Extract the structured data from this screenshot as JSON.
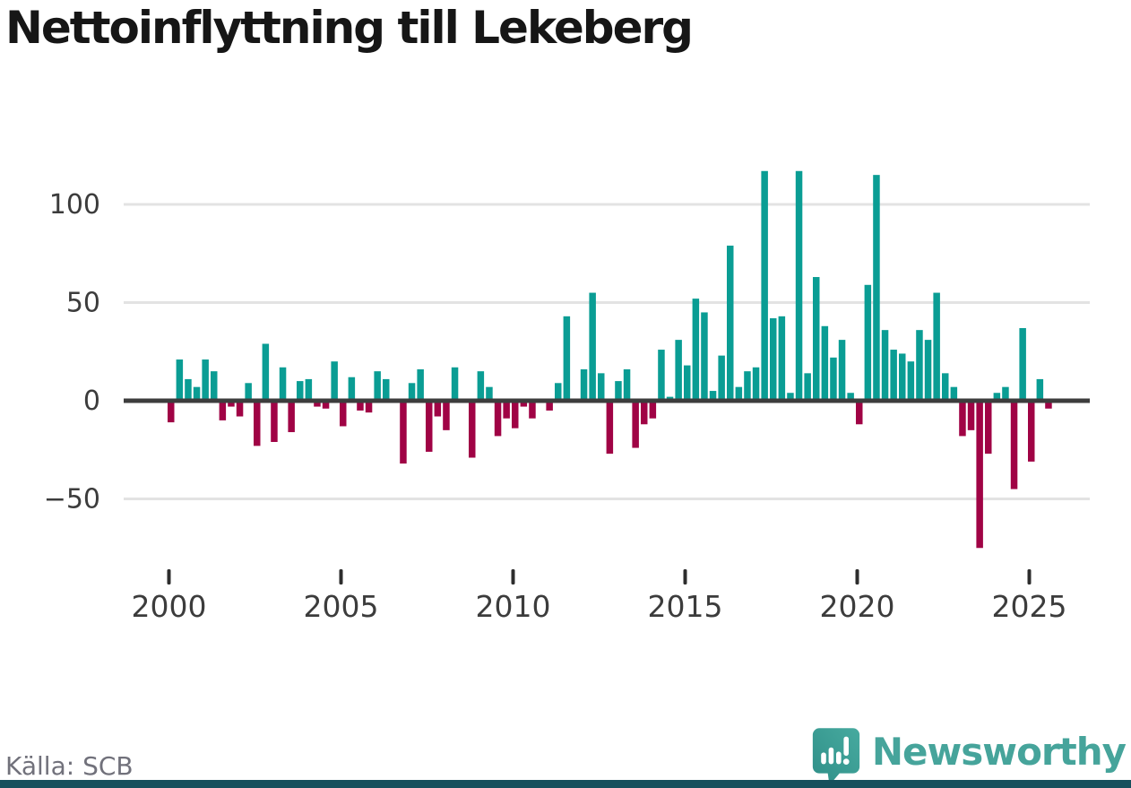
{
  "header": {
    "title": "Nettoinflyttning till Lekeberg"
  },
  "footer": {
    "source_label": "Källa: SCB",
    "brand": "Newsworthy"
  },
  "colors": {
    "positive_bar": "#0a9d94",
    "negative_bar": "#a00345",
    "zero_axis": "#3d3d3d",
    "gridline": "#e3e3e3",
    "tick_label": "#3c3c3c",
    "title_text": "#161616",
    "source_text": "#71717b",
    "brand_teal": "#46a49b",
    "footer_bar": "#15505c"
  },
  "chart_data": {
    "type": "bar",
    "title": "Nettoinflyttning till Lekeberg",
    "xlabel": "",
    "ylabel": "",
    "grid": true,
    "ylim": [
      -80,
      125
    ],
    "y_ticks": [
      100,
      50,
      0,
      -50
    ],
    "x_ticks": [
      "2000",
      "2005",
      "2010",
      "2015",
      "2020",
      "2025"
    ],
    "x": [
      "2000Q1",
      "2000Q2",
      "2000Q3",
      "2000Q4",
      "2001Q1",
      "2001Q2",
      "2001Q3",
      "2001Q4",
      "2002Q1",
      "2002Q2",
      "2002Q3",
      "2002Q4",
      "2003Q1",
      "2003Q2",
      "2003Q3",
      "2003Q4",
      "2004Q1",
      "2004Q2",
      "2004Q3",
      "2004Q4",
      "2005Q1",
      "2005Q2",
      "2005Q3",
      "2005Q4",
      "2006Q1",
      "2006Q2",
      "2006Q3",
      "2006Q4",
      "2007Q1",
      "2007Q2",
      "2007Q3",
      "2007Q4",
      "2008Q1",
      "2008Q2",
      "2008Q3",
      "2008Q4",
      "2009Q1",
      "2009Q2",
      "2009Q3",
      "2009Q4",
      "2010Q1",
      "2010Q2",
      "2010Q3",
      "2010Q4",
      "2011Q1",
      "2011Q2",
      "2011Q3",
      "2011Q4",
      "2012Q1",
      "2012Q2",
      "2012Q3",
      "2012Q4",
      "2013Q1",
      "2013Q2",
      "2013Q3",
      "2013Q4",
      "2014Q1",
      "2014Q2",
      "2014Q3",
      "2014Q4",
      "2015Q1",
      "2015Q2",
      "2015Q3",
      "2015Q4",
      "2016Q1",
      "2016Q2",
      "2016Q3",
      "2016Q4",
      "2017Q1",
      "2017Q2",
      "2017Q3",
      "2017Q4",
      "2018Q1",
      "2018Q2",
      "2018Q3",
      "2018Q4",
      "2019Q1",
      "2019Q2",
      "2019Q3",
      "2019Q4",
      "2020Q1",
      "2020Q2",
      "2020Q3",
      "2020Q4",
      "2021Q1",
      "2021Q2",
      "2021Q3",
      "2021Q4",
      "2022Q1",
      "2022Q2",
      "2022Q3",
      "2022Q4",
      "2023Q1",
      "2023Q2",
      "2023Q3",
      "2023Q4",
      "2024Q1",
      "2024Q2",
      "2024Q3",
      "2024Q4",
      "2025Q1",
      "2025Q2",
      "2025Q3"
    ],
    "values": [
      -11,
      21,
      11,
      7,
      21,
      15,
      -10,
      -3,
      -8,
      9,
      -23,
      29,
      -21,
      17,
      -16,
      10,
      11,
      -3,
      -4,
      20,
      -13,
      12,
      -5,
      -6,
      15,
      11,
      0,
      -32,
      9,
      16,
      -26,
      -8,
      -15,
      17,
      0,
      -29,
      15,
      7,
      -18,
      -9,
      -14,
      -3,
      -9,
      0,
      -5,
      9,
      43,
      0,
      16,
      55,
      14,
      -27,
      10,
      16,
      -24,
      -12,
      -9,
      26,
      2,
      31,
      18,
      52,
      45,
      5,
      23,
      79,
      7,
      15,
      17,
      117,
      42,
      43,
      4,
      117,
      14,
      63,
      38,
      22,
      31,
      4,
      -12,
      59,
      115,
      36,
      26,
      24,
      20,
      36,
      31,
      55,
      14,
      7,
      -18,
      -15,
      -75,
      -27,
      4,
      7,
      -45,
      37,
      -31,
      11,
      -4
    ]
  }
}
